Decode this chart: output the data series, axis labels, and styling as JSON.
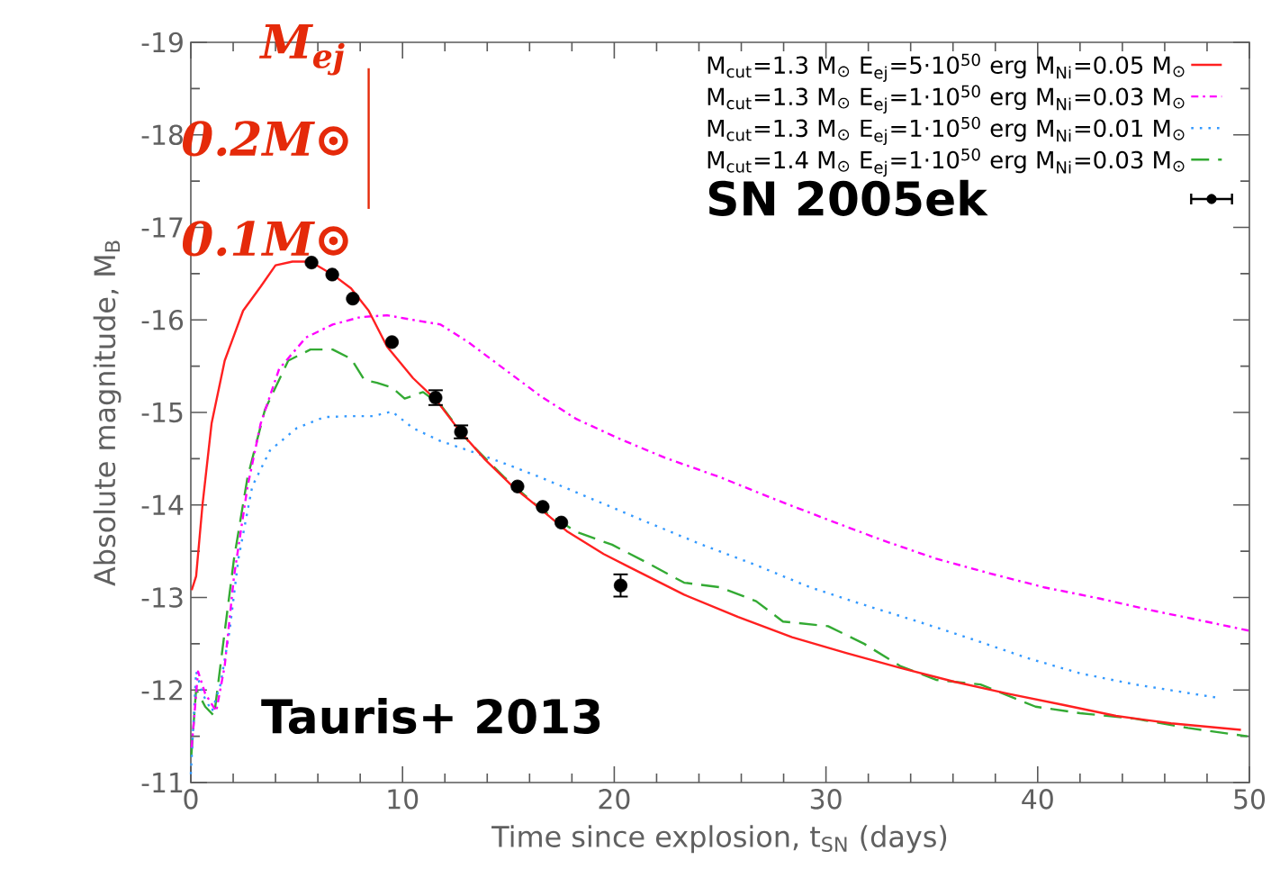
{
  "chart_data": {
    "type": "line",
    "xlabel": "Time since explosion, t$_{SN}$  (days)",
    "ylabel": "Absolute magnitude, M$_{B}$",
    "xlim": [
      0,
      50
    ],
    "xticks": [
      0,
      10,
      20,
      30,
      40,
      50
    ],
    "ylim": [
      -11,
      -19
    ],
    "yticks": [
      -11,
      -12,
      -13,
      -14,
      -15,
      -16,
      -17,
      -18,
      -19
    ],
    "legend": "top right",
    "grid": false,
    "annotations": [
      "*M$_{ej}$*",
      "0.2M⊙",
      "0.1M⊙",
      "Tauris+ 2013"
    ],
    "series": [
      {
        "name": "M$_{cut}$=1.3 M$_{⊙}$    E$_{ej}$=5·10$^{50}$ erg    M$_{Ni}$=0.05 M$_{⊙}$",
        "color": "#ff2020",
        "line_style": "solid",
        "x": [
          0.04,
          0.25,
          0.55,
          0.98,
          1.6,
          2.47,
          3.3,
          4.0,
          4.8,
          5.65,
          6.7,
          7.57,
          8.4,
          9.27,
          10.5,
          11.6,
          12.7,
          13.9,
          15.2,
          16.5,
          17.8,
          19.5,
          20.7,
          23.3,
          25.85,
          28.4,
          30.95,
          33.5,
          36.05,
          38.6,
          41.2,
          43.7,
          46.3,
          49.6
        ],
        "values": [
          -13.08,
          -13.23,
          -14.0,
          -14.88,
          -15.56,
          -16.1,
          -16.36,
          -16.59,
          -16.63,
          -16.63,
          -16.49,
          -16.34,
          -16.1,
          -15.71,
          -15.37,
          -15.13,
          -14.8,
          -14.49,
          -14.2,
          -13.96,
          -13.71,
          -13.47,
          -13.33,
          -13.03,
          -12.79,
          -12.57,
          -12.4,
          -12.24,
          -12.09,
          -11.96,
          -11.84,
          -11.72,
          -11.64,
          -11.57
        ]
      },
      {
        "name": "M$_{cut}$=1.3 M$_{⊙}$    E$_{ej}$=1·10$^{50}$ erg    M$_{Ni}$=0.03 M$_{⊙}$",
        "color": "#ff00ff",
        "line_style": "dashdot",
        "x": [
          0.04,
          0.34,
          0.68,
          1.2,
          1.6,
          2.04,
          2.68,
          3.3,
          4.17,
          5.44,
          6.7,
          8.0,
          9.27,
          10.5,
          11.8,
          13.1,
          14.8,
          16.5,
          18.2,
          20.3,
          22.4,
          25,
          27.6,
          30.1,
          32.65,
          35.2,
          37.75,
          40.3,
          42.9,
          45.4,
          47.95,
          50
        ],
        "values": [
          -11.38,
          -12.2,
          -11.96,
          -11.77,
          -12.26,
          -13.23,
          -14.2,
          -14.88,
          -15.47,
          -15.81,
          -15.95,
          -16.03,
          -16.05,
          -16.0,
          -15.95,
          -15.76,
          -15.47,
          -15.18,
          -14.93,
          -14.71,
          -14.51,
          -14.3,
          -14.06,
          -13.84,
          -13.62,
          -13.42,
          -13.26,
          -13.11,
          -12.99,
          -12.86,
          -12.74,
          -12.64
        ]
      },
      {
        "name": "M$_{cut}$=1.3 M$_{⊙}$    E$_{ej}$=1·10$^{50}$ erg    M$_{Ni}$=0.01 M$_{⊙}$",
        "color": "#3399ff",
        "line_style": "dotted",
        "x": [
          0.0,
          0.25,
          0.55,
          1.0,
          1.4,
          1.83,
          2.25,
          2.9,
          3.74,
          5.0,
          6.3,
          7.57,
          8.6,
          9.5,
          10.5,
          11.8,
          13.1,
          14.8,
          16.5,
          19,
          21.6,
          24.15,
          26.7,
          29.25,
          31.8,
          34.35,
          36.9,
          39.45,
          42,
          44.6,
          48.4
        ],
        "values": [
          -11.09,
          -12.2,
          -11.96,
          -11.77,
          -12.06,
          -12.64,
          -13.42,
          -14.2,
          -14.59,
          -14.83,
          -14.95,
          -14.96,
          -14.96,
          -15.01,
          -14.83,
          -14.69,
          -14.59,
          -14.45,
          -14.3,
          -14.06,
          -13.81,
          -13.57,
          -13.35,
          -13.11,
          -12.92,
          -12.74,
          -12.55,
          -12.35,
          -12.18,
          -12.06,
          -11.92
        ]
      },
      {
        "name": "M$_{cut}$=1.4 M$_{⊙}$    E$_{ej}$=1·10$^{50}$ erg    M$_{Ni}$=0.03 M$_{⊙}$",
        "color": "#33aa33",
        "line_style": "dashed",
        "x": [
          0.02,
          0.25,
          0.68,
          1.1,
          1.5,
          2.04,
          2.68,
          3.5,
          4.6,
          5.65,
          6.7,
          7.57,
          8.2,
          8.8,
          9.5,
          10.1,
          10.97,
          11.8,
          13.1,
          14.8,
          16.5,
          18.2,
          19.9,
          21.6,
          23.3,
          25,
          26.7,
          27.97,
          30.1,
          31.8,
          33.5,
          35.2,
          37.3,
          39.9,
          42,
          44.6,
          47.1,
          49.9
        ],
        "values": [
          -11.28,
          -12.01,
          -11.82,
          -11.72,
          -12.45,
          -13.42,
          -14.3,
          -15.03,
          -15.56,
          -15.68,
          -15.68,
          -15.58,
          -15.35,
          -15.32,
          -15.27,
          -15.15,
          -15.22,
          -15.08,
          -14.69,
          -14.3,
          -13.96,
          -13.71,
          -13.57,
          -13.37,
          -13.16,
          -13.11,
          -12.96,
          -12.74,
          -12.69,
          -12.5,
          -12.26,
          -12.11,
          -12.06,
          -11.82,
          -11.75,
          -11.69,
          -11.59,
          -11.5
        ]
      },
      {
        "name": "SN 2005ek",
        "type": "scatter",
        "marker": "circle",
        "color": "#000000",
        "x": [
          5.7,
          6.68,
          7.65,
          9.5,
          11.56,
          12.76,
          15.43,
          16.62,
          17.5,
          20.3
        ],
        "values": [
          -16.62,
          -16.49,
          -16.23,
          -15.76,
          -15.16,
          -14.79,
          -14.2,
          -13.98,
          -13.81,
          -13.13
        ],
        "errors": [
          null,
          null,
          null,
          null,
          0.08,
          0.07,
          null,
          null,
          null,
          0.12
        ]
      }
    ]
  }
}
